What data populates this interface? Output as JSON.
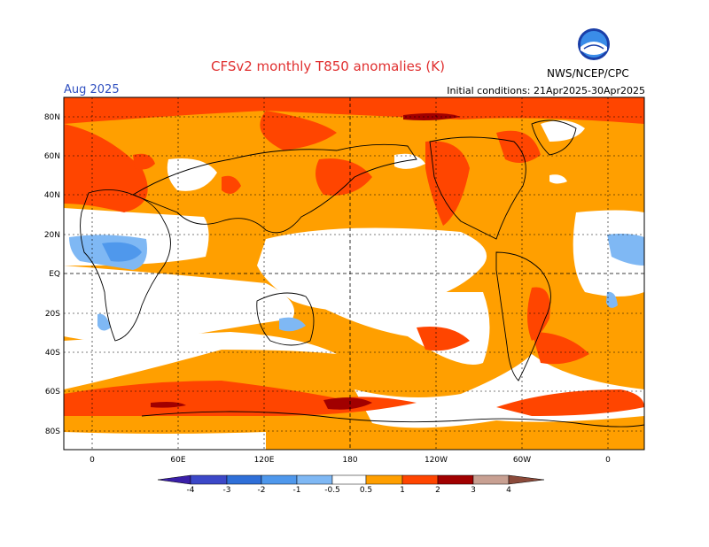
{
  "title": "CFSv2 monthly T850 anomalies (K)",
  "forecast_month": "Aug 2025",
  "initial_conditions": "Initial conditions: 21Apr2025-30Apr2025",
  "agency": "NWS/NCEP/CPC",
  "logo_text": "NOAA",
  "lat_labels": [
    "80N",
    "60N",
    "40N",
    "20N",
    "EQ",
    "20S",
    "40S",
    "60S",
    "80S"
  ],
  "lon_labels": [
    "0",
    "60E",
    "120E",
    "180",
    "120W",
    "60W",
    "0"
  ],
  "colorbar": {
    "labels": [
      "-4",
      "-3",
      "-2",
      "-1",
      "-0.5",
      "0.5",
      "1",
      "2",
      "3",
      "4"
    ],
    "colors": [
      "#3a1fa8",
      "#3c48c8",
      "#2f6fd8",
      "#4f98ec",
      "#7fb8f4",
      "#ffffff",
      "#ff9f00",
      "#ff4500",
      "#a10000",
      "#c8a092",
      "#8b4a3a"
    ]
  },
  "colors": {
    "warm1": "#ff9f00",
    "warm2": "#ff4500",
    "warm3": "#a10000",
    "cool1": "#7fb8f4",
    "cool2": "#4f98ec"
  }
}
